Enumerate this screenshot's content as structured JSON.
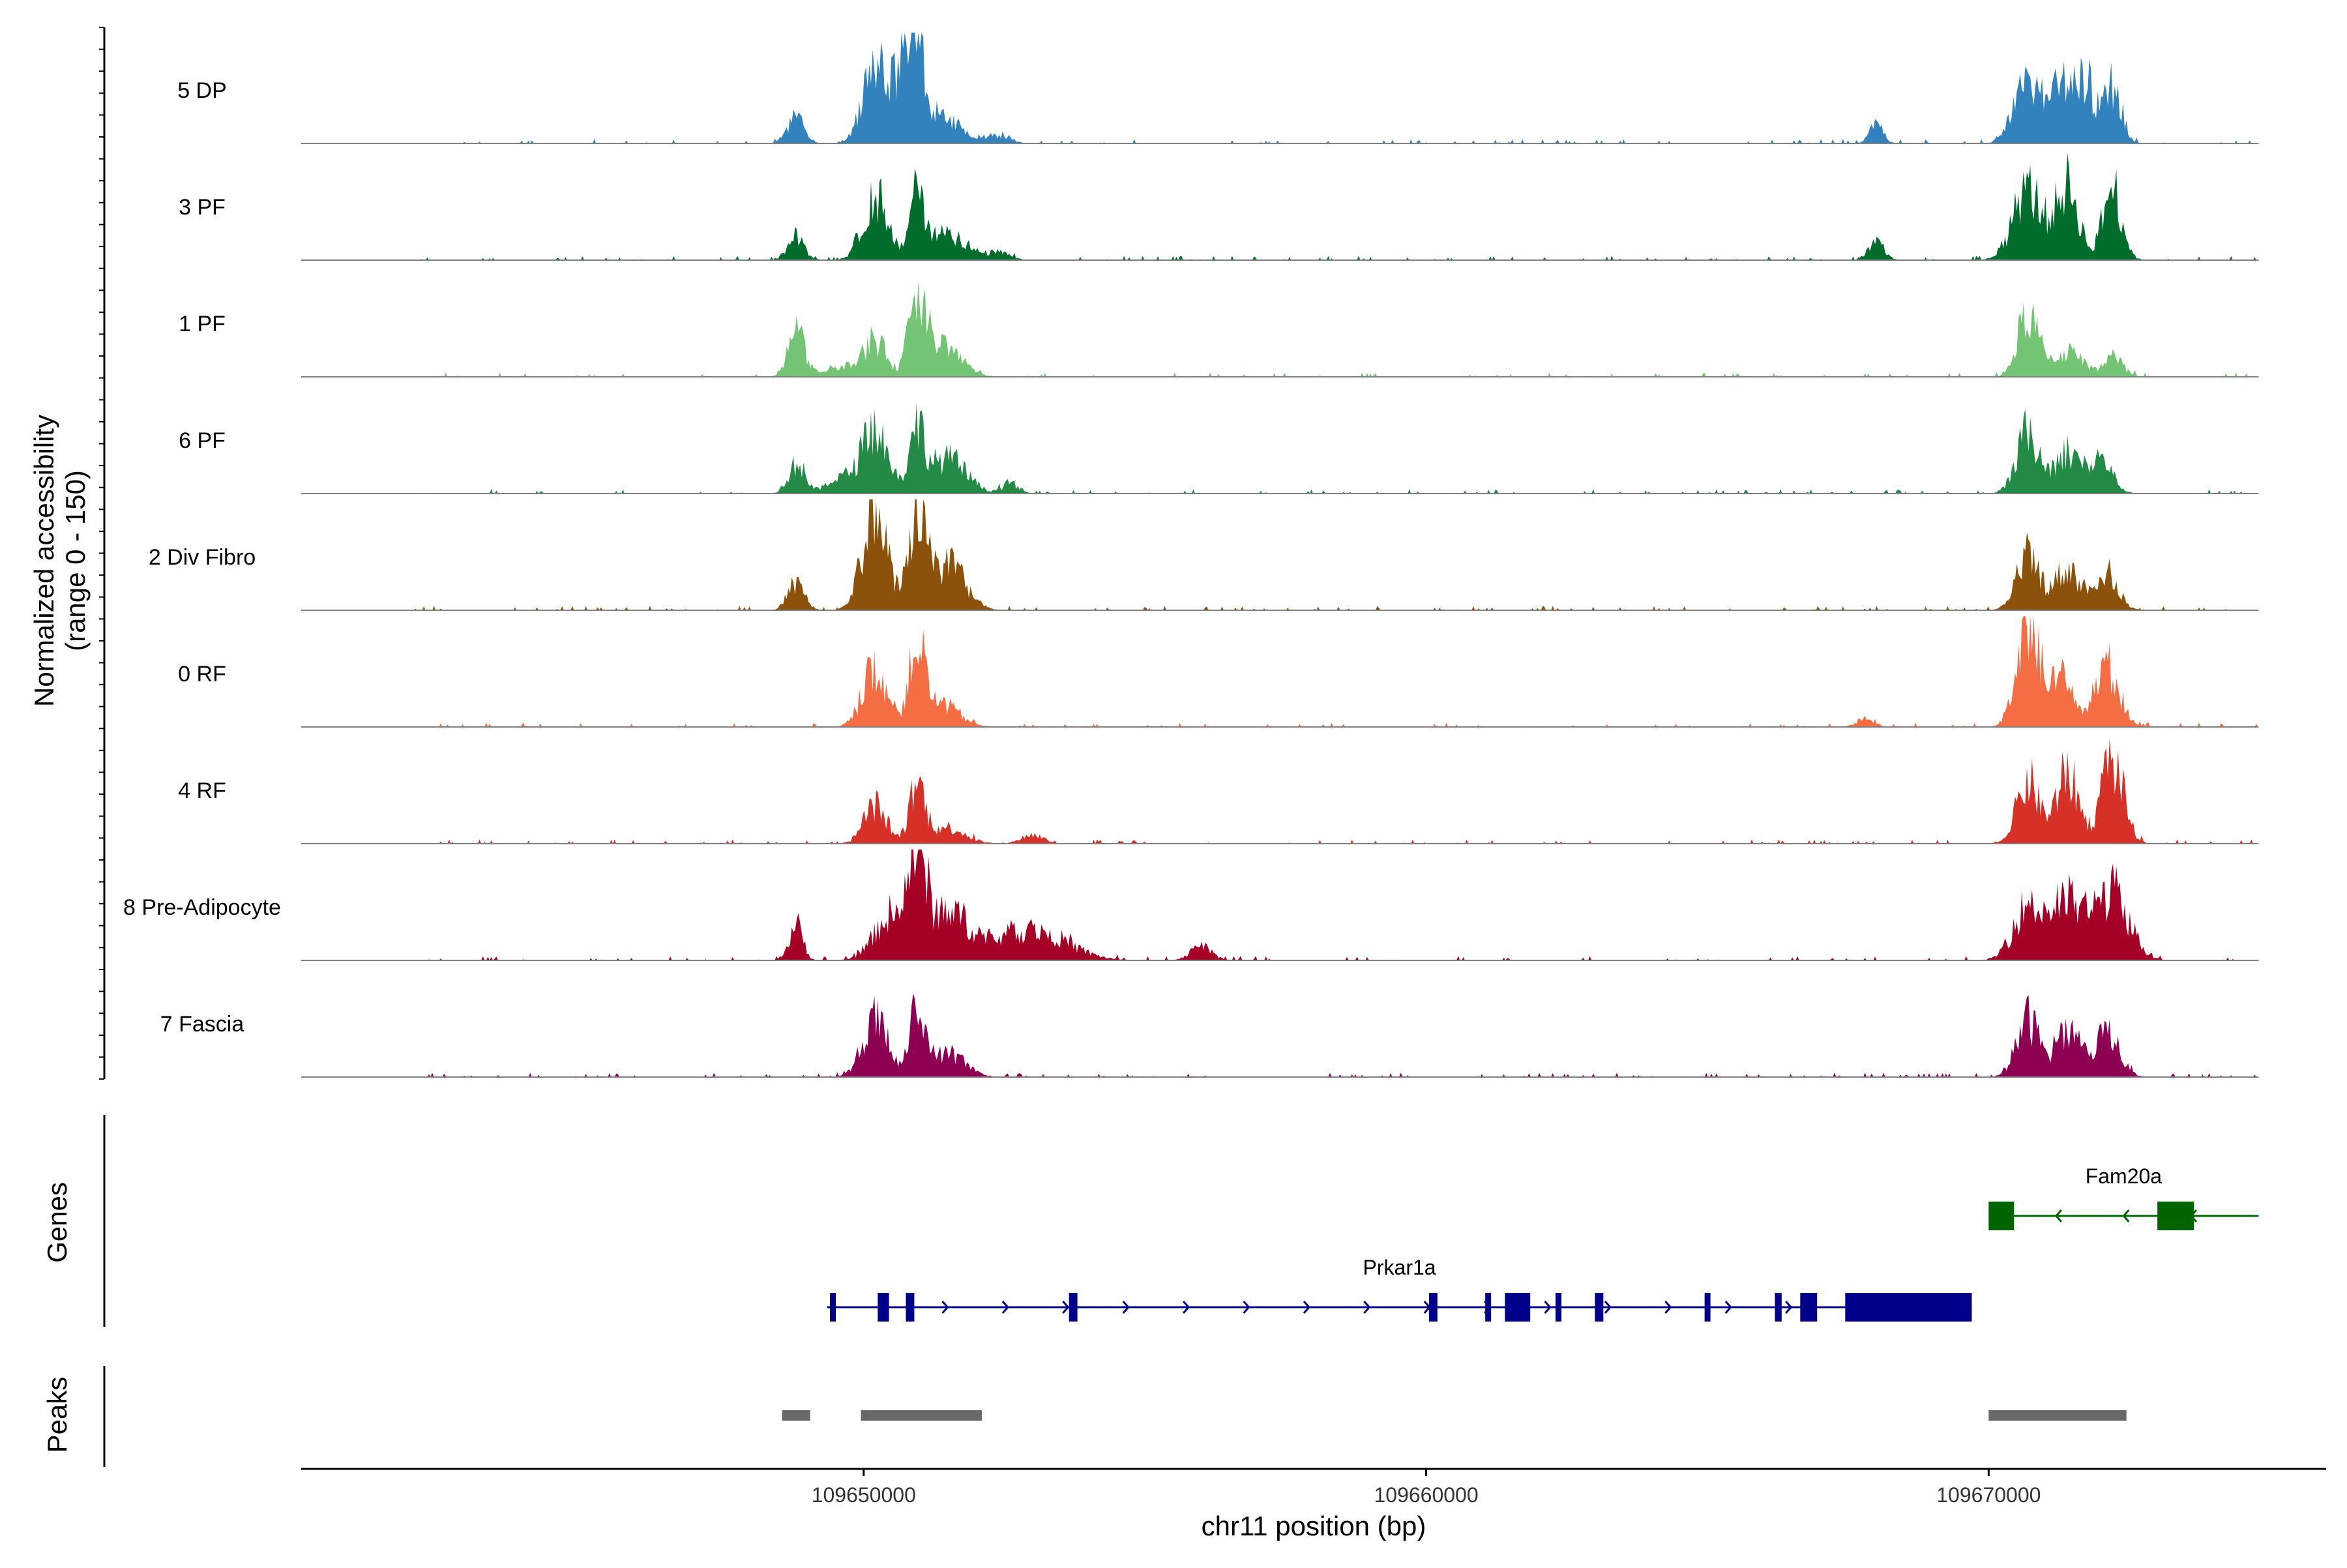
{
  "chart_data": {
    "type": "area",
    "title": "",
    "region": {
      "chromosome": "chr11",
      "start": 109640000,
      "end": 109676000
    },
    "xlabel": "chr11 position (bp)",
    "x_ticks": [
      109650000,
      109660000,
      109670000
    ],
    "x_tick_labels": [
      "109650000",
      "109660000",
      "109670000"
    ],
    "coverage": {
      "ylabel_line1": "Normalized accessibility",
      "ylabel_line2": "(range 0 - 150)",
      "ylim": [
        0,
        150
      ],
      "series": [
        {
          "name": "5 DP",
          "color": "#3182bd",
          "peaks": [
            [
              109648800,
              35,
              150
            ],
            [
              109650200,
              105,
              220
            ],
            [
              109650700,
              90,
              160
            ],
            [
              109650950,
              112,
              130
            ],
            [
              109651400,
              40,
              300
            ],
            [
              109652400,
              12,
              200
            ],
            [
              109668000,
              28,
              120
            ],
            [
              109670700,
              82,
              240
            ],
            [
              109671300,
              70,
              200
            ],
            [
              109671700,
              85,
              170
            ],
            [
              109672200,
              75,
              160
            ]
          ]
        },
        {
          "name": "3 PF",
          "color": "#006d2c",
          "peaks": [
            [
              109648800,
              32,
              150
            ],
            [
              109650200,
              86,
              220
            ],
            [
              109650950,
              98,
              130
            ],
            [
              109651500,
              38,
              320
            ],
            [
              109652400,
              10,
              200
            ],
            [
              109668000,
              24,
              140
            ],
            [
              109670700,
              95,
              260
            ],
            [
              109671400,
              100,
              200
            ],
            [
              109672200,
              98,
              170
            ]
          ]
        },
        {
          "name": "1 PF",
          "color": "#74c476",
          "peaks": [
            [
              109648800,
              62,
              150
            ],
            [
              109649600,
              15,
              250
            ],
            [
              109650200,
              48,
              200
            ],
            [
              109650950,
              112,
              140
            ],
            [
              109651400,
              44,
              320
            ],
            [
              109670700,
              86,
              180
            ],
            [
              109671400,
              34,
              260
            ],
            [
              109672200,
              28,
              180
            ]
          ]
        },
        {
          "name": "6 PF",
          "color": "#238b45",
          "peaks": [
            [
              109648800,
              38,
              150
            ],
            [
              109649600,
              20,
              250
            ],
            [
              109650200,
              88,
              230
            ],
            [
              109650950,
              82,
              140
            ],
            [
              109651500,
              48,
              320
            ],
            [
              109652600,
              14,
              150
            ],
            [
              109670700,
              82,
              200
            ],
            [
              109671400,
              55,
              240
            ],
            [
              109672000,
              45,
              200
            ]
          ]
        },
        {
          "name": "2 Div Fibro",
          "color": "#8c510a",
          "peaks": [
            [
              109648800,
              34,
              150
            ],
            [
              109650200,
              132,
              220
            ],
            [
              109650950,
              128,
              160
            ],
            [
              109651500,
              60,
              300
            ],
            [
              109670700,
              72,
              200
            ],
            [
              109671400,
              55,
              240
            ],
            [
              109672100,
              50,
              200
            ]
          ]
        },
        {
          "name": "0 RF",
          "color": "#f46d43",
          "peaks": [
            [
              109650200,
              78,
              220
            ],
            [
              109650950,
              108,
              140
            ],
            [
              109651400,
              30,
              300
            ],
            [
              109667800,
              12,
              150
            ],
            [
              109670700,
              145,
              200
            ],
            [
              109671300,
              64,
              200
            ],
            [
              109672100,
              80,
              220
            ]
          ]
        },
        {
          "name": "4 RF",
          "color": "#d73027",
          "peaks": [
            [
              109650200,
              52,
              200
            ],
            [
              109650950,
              78,
              140
            ],
            [
              109651500,
              22,
              300
            ],
            [
              109653000,
              12,
              200
            ],
            [
              109670700,
              85,
              200
            ],
            [
              109671400,
              95,
              200
            ],
            [
              109672200,
              112,
              200
            ]
          ]
        },
        {
          "name": "8 Pre-Adipocyte",
          "color": "#a50026",
          "peaks": [
            [
              109648800,
              48,
              120
            ],
            [
              109650500,
              60,
              300
            ],
            [
              109650950,
              118,
              150
            ],
            [
              109651500,
              64,
              400
            ],
            [
              109653000,
              42,
              600
            ],
            [
              109656000,
              18,
              200
            ],
            [
              109670700,
              72,
              260
            ],
            [
              109671400,
              78,
              300
            ],
            [
              109672200,
              90,
              300
            ]
          ]
        },
        {
          "name": "7 Fascia",
          "color": "#8e0152",
          "peaks": [
            [
              109650200,
              78,
              220
            ],
            [
              109650950,
              86,
              140
            ],
            [
              109651500,
              32,
              300
            ],
            [
              109670700,
              78,
              200
            ],
            [
              109671400,
              62,
              220
            ],
            [
              109672100,
              60,
              220
            ]
          ]
        }
      ]
    },
    "genes": {
      "ylabel": "Genes",
      "items": [
        {
          "name": "Prkar1a",
          "color": "#00008b",
          "strand": "+",
          "start": 109649350,
          "end": 109669700,
          "exons": [
            [
              109649400,
              109649500
            ],
            [
              109650250,
              109650450
            ],
            [
              109650750,
              109650900
            ],
            [
              109653650,
              109653800
            ],
            [
              109660050,
              109660200
            ],
            [
              109661050,
              109661120
            ],
            [
              109661400,
              109661850
            ],
            [
              109662300,
              109662380
            ],
            [
              109663000,
              109663150
            ],
            [
              109664950,
              109665020
            ],
            [
              109666200,
              109666320
            ],
            [
              109666650,
              109666950
            ],
            [
              109667450,
              109669700
            ]
          ]
        },
        {
          "name": "Fam20a",
          "color": "#006400",
          "strand": "-",
          "start": 109670000,
          "end": 109674800,
          "exons": [
            [
              109670000,
              109670450
            ],
            [
              109673000,
              109673650
            ]
          ]
        }
      ]
    },
    "peaks": {
      "ylabel": "Peaks",
      "color": "#696969",
      "regions": [
        [
          109648550,
          109649050
        ],
        [
          109649950,
          109652100
        ],
        [
          109670000,
          109672450
        ]
      ]
    }
  }
}
